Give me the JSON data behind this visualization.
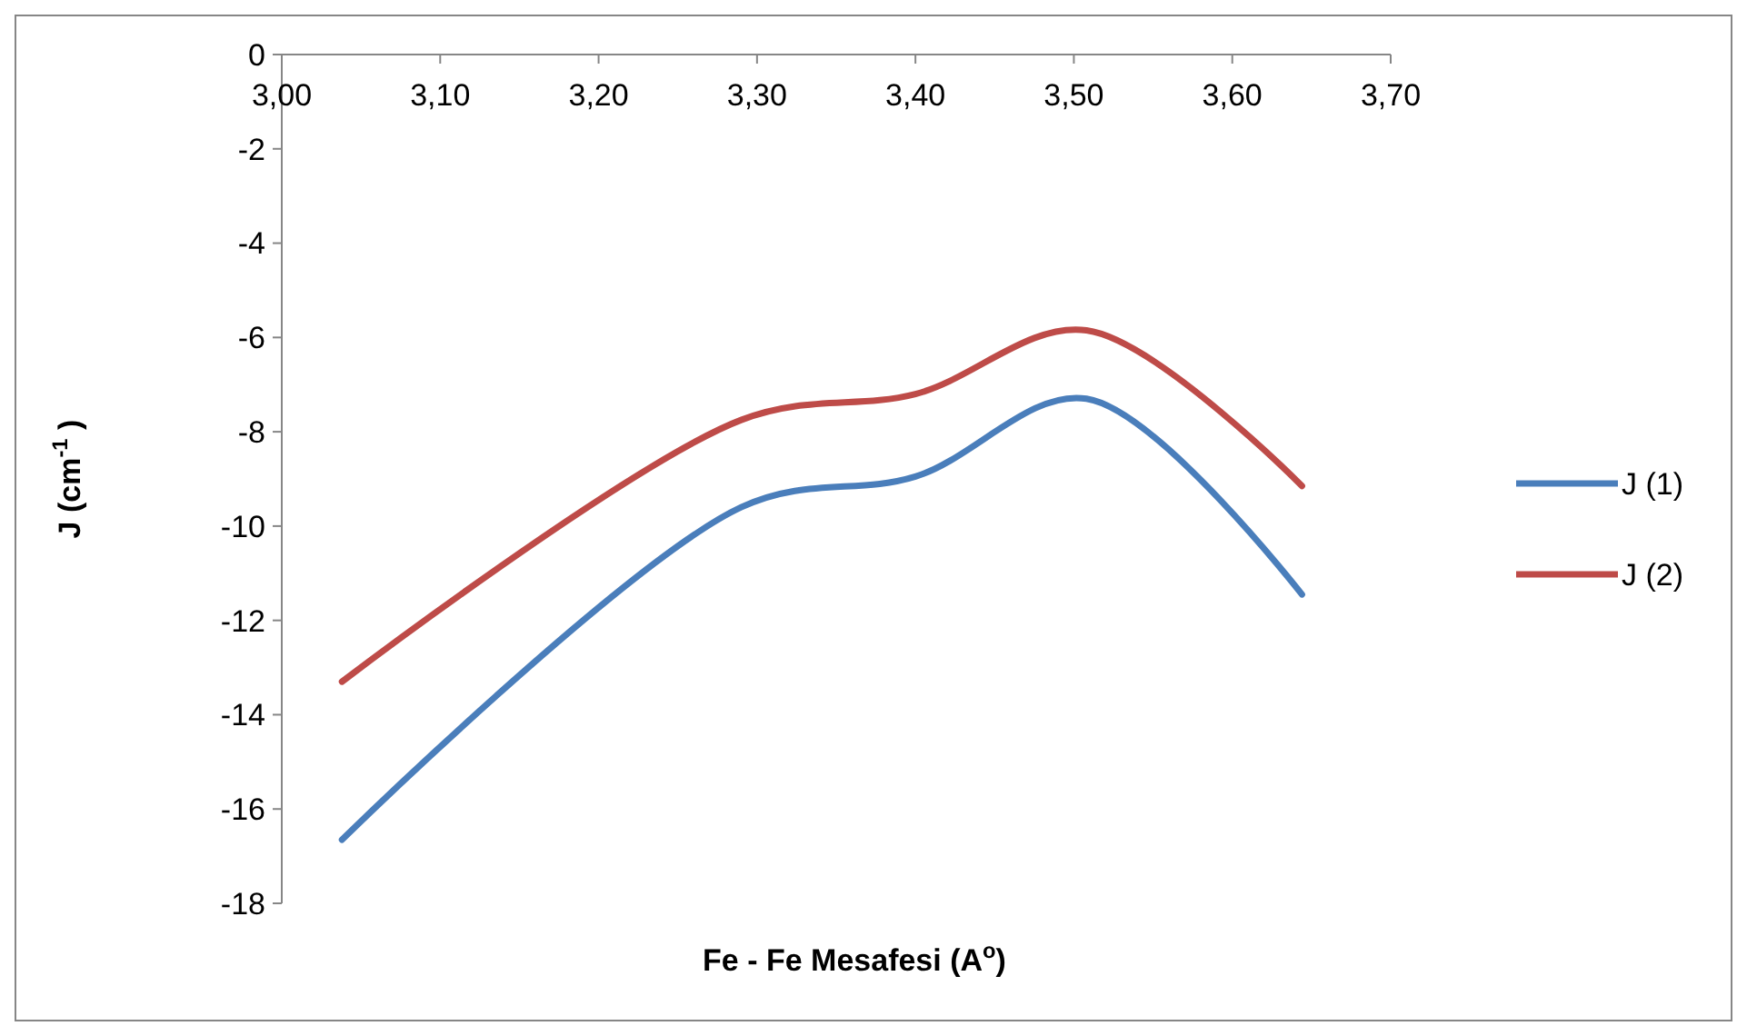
{
  "chart_data": {
    "type": "line",
    "xlabel": "Fe - Fe Mesafesi (A$^{o}$)",
    "ylabel": "J (cm$^{-1}$ )",
    "xlim": [
      3.0,
      3.7
    ],
    "xticks": [
      {
        "value": 3.0,
        "label": "3,00"
      },
      {
        "value": 3.1,
        "label": "3,10"
      },
      {
        "value": 3.2,
        "label": "3,20"
      },
      {
        "value": 3.3,
        "label": "3,30"
      },
      {
        "value": 3.4,
        "label": "3,40"
      },
      {
        "value": 3.5,
        "label": "3,50"
      },
      {
        "value": 3.6,
        "label": "3,60"
      },
      {
        "value": 3.7,
        "label": "3,70"
      }
    ],
    "ylim": [
      -18,
      0
    ],
    "yticks": [
      0,
      -2,
      -4,
      -6,
      -8,
      -10,
      -12,
      -14,
      -16,
      -18
    ],
    "x": [
      3.038,
      3.29,
      3.4,
      3.508,
      3.644
    ],
    "series": [
      {
        "name": "J (1)",
        "color": "#4a7ebb",
        "values": [
          -16.65,
          -9.6,
          -8.95,
          -7.3,
          -11.45
        ]
      },
      {
        "name": "J (2)",
        "color": "#be4b48",
        "values": [
          -13.3,
          -7.75,
          -7.2,
          -5.85,
          -9.15
        ]
      }
    ],
    "legend": "right",
    "grid": false,
    "marker": "none",
    "line_style": "solid"
  }
}
